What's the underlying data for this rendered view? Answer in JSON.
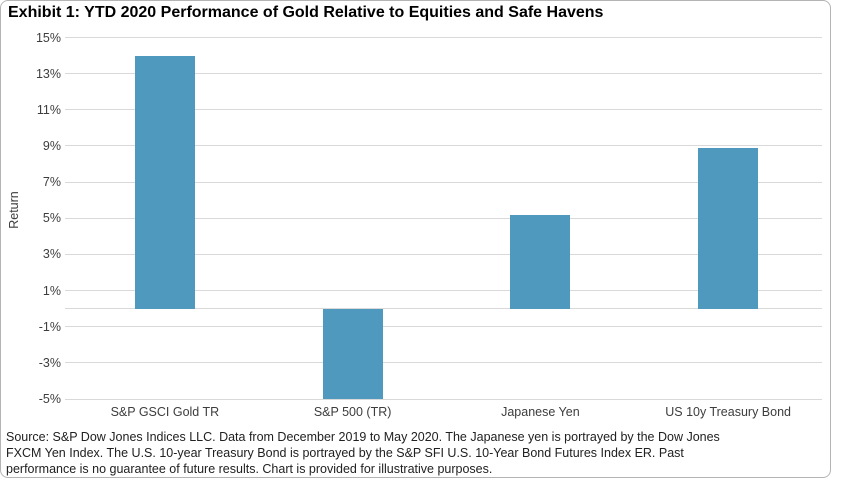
{
  "title": "Exhibit 1: YTD 2020 Performance of Gold Relative to Equities and Safe Havens",
  "chart_data": {
    "type": "bar",
    "categories": [
      "S&P GSCI Gold TR",
      "S&P 500 (TR)",
      "Japanese Yen",
      "US 10y Treasury Bond"
    ],
    "values": [
      14.0,
      -5.0,
      5.2,
      8.9
    ],
    "unit": "%",
    "title": "Exhibit 1: YTD 2020 Performance of Gold Relative to Equities and Safe Havens",
    "xlabel": "",
    "ylabel": "Return",
    "ylim": [
      -5,
      15
    ],
    "ytick_values": [
      15,
      13,
      11,
      9,
      7,
      5,
      3,
      1,
      -1,
      -3,
      -5
    ],
    "ytick_labels": [
      "15%",
      "13%",
      "11%",
      "9%",
      "7%",
      "5%",
      "3%",
      "1%",
      "-1%",
      "-3%",
      "-5%"
    ],
    "zero_line": true,
    "grid": true,
    "legend": "none",
    "bar_color": "#4f99be",
    "gridline_color": "#d9d9d9"
  },
  "footer": {
    "source_lines": [
      "Source: S&P Dow Jones Indices LLC. Data from December 2019 to May 2020. The Japanese yen is portrayed by the Dow Jones",
      "FXCM Yen Index. The U.S. 10-year Treasury Bond is portrayed by the S&P SFI U.S. 10-Year Bond Futures Index ER. Past",
      "performance is no guarantee of future results. Chart is provided for illustrative purposes."
    ]
  }
}
